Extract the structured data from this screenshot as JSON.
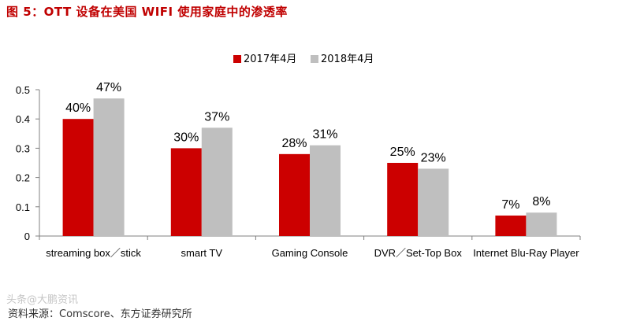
{
  "figure_title": "图 5：OTT 设备在美国 WIFI 使用家庭中的渗透率",
  "source": "资料来源：Comscore、东方证券研究所",
  "watermark": "头条@大鹏资讯",
  "colors": {
    "title": "#c00000",
    "series_2017": "#cc0000",
    "series_2018": "#bfbfbf",
    "axis": "#808080"
  },
  "chart_data": {
    "type": "bar",
    "title": "",
    "categories": [
      "streaming box／stick",
      "smart TV",
      "Gaming Console",
      "DVR／Set-Top Box",
      "Internet Blu-Ray Player"
    ],
    "series": [
      {
        "name": "2017年4月",
        "values": [
          0.4,
          0.3,
          0.28,
          0.25,
          0.07
        ],
        "labels": [
          "40%",
          "30%",
          "28%",
          "25%",
          "7%"
        ]
      },
      {
        "name": "2018年4月",
        "values": [
          0.47,
          0.37,
          0.31,
          0.23,
          0.08
        ],
        "labels": [
          "47%",
          "37%",
          "31%",
          "23%",
          "8%"
        ]
      }
    ],
    "ylim": [
      0,
      0.5
    ],
    "yticks": [
      "0",
      "0.1",
      "0.2",
      "0.3",
      "0.4",
      "0.5"
    ],
    "xlabel": "",
    "ylabel": "",
    "grid": false,
    "legend": "top-center"
  }
}
